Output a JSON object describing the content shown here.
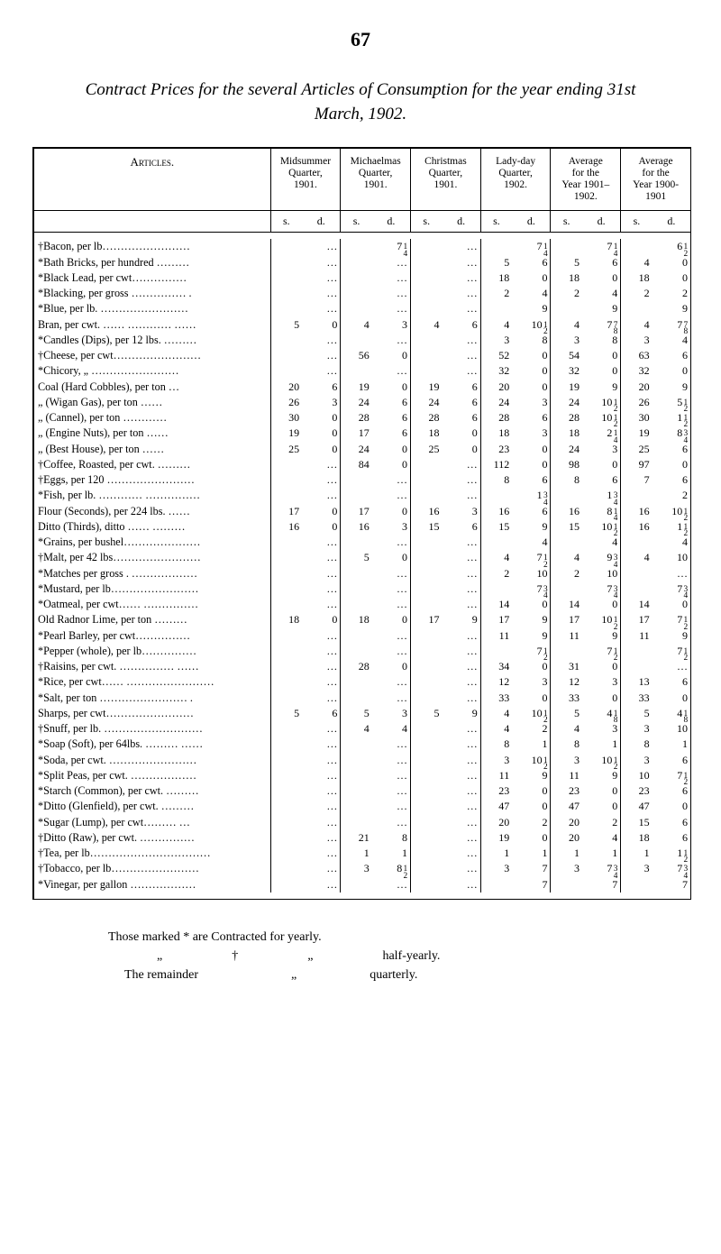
{
  "page_number": "67",
  "title": "Contract Prices for the several Articles of Consumption for the year ending 31st March, 1902.",
  "headers": {
    "articles": "Articles.",
    "cols": [
      "Midsummer\nQuarter,\n1901.",
      "Michaelmas\nQuarter,\n1901.",
      "Christmas\nQuarter,\n1901.",
      "Lady-day\nQuarter,\n1902.",
      "Average\nfor the\nYear 1901–\n1902.",
      "Average\nfor the\nYear 1900-\n1901"
    ],
    "s": "s.",
    "d": "d."
  },
  "rows": [
    {
      "a": "†Bacon, per lb……………………",
      "v": [
        [
          "",
          "…"
        ],
        [
          "",
          "7¼"
        ],
        [
          "",
          "…"
        ],
        [
          "",
          "7¼"
        ],
        [
          "",
          "7¼"
        ],
        [
          "",
          "6½"
        ]
      ]
    },
    {
      "a": "*Bath Bricks, per hundred ………",
      "v": [
        [
          "",
          "…"
        ],
        [
          "",
          "…"
        ],
        [
          "",
          "…"
        ],
        [
          "5",
          "6"
        ],
        [
          "5",
          "6"
        ],
        [
          "4",
          "0"
        ]
      ]
    },
    {
      "a": "*Black Lead, per cwt……………",
      "v": [
        [
          "",
          "…"
        ],
        [
          "",
          "…"
        ],
        [
          "",
          "…"
        ],
        [
          "18",
          "0"
        ],
        [
          "18",
          "0"
        ],
        [
          "18",
          "0"
        ]
      ]
    },
    {
      "a": "*Blacking, per gross …………… .",
      "v": [
        [
          "",
          "…"
        ],
        [
          "",
          "…"
        ],
        [
          "",
          "…"
        ],
        [
          "2",
          "4"
        ],
        [
          "2",
          "4"
        ],
        [
          "2",
          "2"
        ]
      ]
    },
    {
      "a": "*Blue, per lb.  ……………………",
      "v": [
        [
          "",
          "…"
        ],
        [
          "",
          "…"
        ],
        [
          "",
          "…"
        ],
        [
          "",
          "9"
        ],
        [
          "",
          "9"
        ],
        [
          "",
          "9"
        ]
      ]
    },
    {
      "a": "   Bran, per cwt.  …… ………… ……",
      "v": [
        [
          "5",
          "0"
        ],
        [
          "4",
          "3"
        ],
        [
          "4",
          "6"
        ],
        [
          "4",
          "10½"
        ],
        [
          "4",
          "7⅞"
        ],
        [
          "4",
          "7⅞"
        ]
      ]
    },
    {
      "a": "*Candles (Dips), per 12 lbs. ………",
      "v": [
        [
          "",
          "…"
        ],
        [
          "",
          "…"
        ],
        [
          "",
          "…"
        ],
        [
          "3",
          "8"
        ],
        [
          "3",
          "8"
        ],
        [
          "3",
          "4"
        ]
      ]
    },
    {
      "a": "†Cheese, per cwt……………………",
      "v": [
        [
          "",
          "…"
        ],
        [
          "56",
          "0"
        ],
        [
          "",
          "…"
        ],
        [
          "52",
          "0"
        ],
        [
          "54",
          "0"
        ],
        [
          "63",
          "6"
        ]
      ]
    },
    {
      "a": "*Chicory,    „  ……………………",
      "v": [
        [
          "",
          "…"
        ],
        [
          "",
          "…"
        ],
        [
          "",
          "…"
        ],
        [
          "32",
          "0"
        ],
        [
          "32",
          "0"
        ],
        [
          "32",
          "0"
        ]
      ]
    },
    {
      "a": "  Coal (Hard Cobbles), per ton  …",
      "v": [
        [
          "20",
          "6"
        ],
        [
          "19",
          "0"
        ],
        [
          "19",
          "6"
        ],
        [
          "20",
          "0"
        ],
        [
          "19",
          "9"
        ],
        [
          "20",
          "9"
        ]
      ]
    },
    {
      "a": "   „   (Wigan Gas), per ton  ……",
      "v": [
        [
          "26",
          "3"
        ],
        [
          "24",
          "6"
        ],
        [
          "24",
          "6"
        ],
        [
          "24",
          "3"
        ],
        [
          "24",
          "10½"
        ],
        [
          "26",
          "5½"
        ]
      ]
    },
    {
      "a": "   „   (Cannel), per ton  …………",
      "v": [
        [
          "30",
          "0"
        ],
        [
          "28",
          "6"
        ],
        [
          "28",
          "6"
        ],
        [
          "28",
          "6"
        ],
        [
          "28",
          "10½"
        ],
        [
          "30",
          "1½"
        ]
      ]
    },
    {
      "a": "   „   (Engine Nuts), per ton ……",
      "v": [
        [
          "19",
          "0"
        ],
        [
          "17",
          "6"
        ],
        [
          "18",
          "0"
        ],
        [
          "18",
          "3"
        ],
        [
          "18",
          "2¼"
        ],
        [
          "19",
          "8¾"
        ]
      ]
    },
    {
      "a": "   „   (Best House), per ton ……",
      "v": [
        [
          "25",
          "0"
        ],
        [
          "24",
          "0"
        ],
        [
          "25",
          "0"
        ],
        [
          "23",
          "0"
        ],
        [
          "24",
          "3"
        ],
        [
          "25",
          "6"
        ]
      ]
    },
    {
      "a": "†Coffee, Roasted, per cwt.  ………",
      "v": [
        [
          "",
          "…"
        ],
        [
          "84",
          "0"
        ],
        [
          "",
          "…"
        ],
        [
          "112",
          "0"
        ],
        [
          "98",
          "0"
        ],
        [
          "97",
          "0"
        ]
      ]
    },
    {
      "a": "†Eggs, per 120 ……………………",
      "v": [
        [
          "",
          "…"
        ],
        [
          "",
          "…"
        ],
        [
          "",
          "…"
        ],
        [
          "8",
          "6"
        ],
        [
          "8",
          "6"
        ],
        [
          "7",
          "6"
        ]
      ]
    },
    {
      "a": "*Fish, per lb.  ………… ……………",
      "v": [
        [
          "",
          "…"
        ],
        [
          "",
          "…"
        ],
        [
          "",
          "…"
        ],
        [
          "",
          "1¾"
        ],
        [
          "",
          "1¾"
        ],
        [
          "",
          "2"
        ]
      ]
    },
    {
      "a": "  Flour (Seconds), per 224 lbs. ……",
      "v": [
        [
          "17",
          "0"
        ],
        [
          "17",
          "0"
        ],
        [
          "16",
          "3"
        ],
        [
          "16",
          "6"
        ],
        [
          "16",
          "8¼"
        ],
        [
          "16",
          "10½"
        ]
      ]
    },
    {
      "a": "  Ditto (Thirds), ditto …… ………",
      "v": [
        [
          "16",
          "0"
        ],
        [
          "16",
          "3"
        ],
        [
          "15",
          "6"
        ],
        [
          "15",
          "9"
        ],
        [
          "15",
          "10½"
        ],
        [
          "16",
          "1½"
        ]
      ]
    },
    {
      "a": "*Grains, per bushel…………………",
      "v": [
        [
          "",
          "…"
        ],
        [
          "",
          "…"
        ],
        [
          "",
          "…"
        ],
        [
          "",
          "4"
        ],
        [
          "",
          "4"
        ],
        [
          "",
          "4"
        ]
      ]
    },
    {
      "a": "†Malt, per 42 lbs……………………",
      "v": [
        [
          "",
          "…"
        ],
        [
          "5",
          "0"
        ],
        [
          "",
          "…"
        ],
        [
          "4",
          "7½"
        ],
        [
          "4",
          "9¾"
        ],
        [
          "4",
          "10"
        ]
      ]
    },
    {
      "a": "*Matches per gross . ………………",
      "v": [
        [
          "",
          "…"
        ],
        [
          "",
          "…"
        ],
        [
          "",
          "…"
        ],
        [
          "2",
          "10"
        ],
        [
          "2",
          "10"
        ],
        [
          "",
          "…"
        ]
      ]
    },
    {
      "a": "*Mustard, per lb……………………",
      "v": [
        [
          "",
          "…"
        ],
        [
          "",
          "…"
        ],
        [
          "",
          "…"
        ],
        [
          "",
          "7¾"
        ],
        [
          "",
          "7¾"
        ],
        [
          "",
          "7¾"
        ]
      ]
    },
    {
      "a": "*Oatmeal, per cwt……  ……………",
      "v": [
        [
          "",
          "…"
        ],
        [
          "",
          "…"
        ],
        [
          "",
          "…"
        ],
        [
          "14",
          "0"
        ],
        [
          "14",
          "0"
        ],
        [
          "14",
          "0"
        ]
      ]
    },
    {
      "a": "  Old Radnor Lime, per ton ………",
      "v": [
        [
          "18",
          "0"
        ],
        [
          "18",
          "0"
        ],
        [
          "17",
          "9"
        ],
        [
          "17",
          "9"
        ],
        [
          "17",
          "10½"
        ],
        [
          "17",
          "7½"
        ]
      ]
    },
    {
      "a": "*Pearl Barley, per cwt……………",
      "v": [
        [
          "",
          "…"
        ],
        [
          "",
          "…"
        ],
        [
          "",
          "…"
        ],
        [
          "11",
          "9"
        ],
        [
          "11",
          "9"
        ],
        [
          "11",
          "9"
        ]
      ]
    },
    {
      "a": "*Pepper (whole), per lb……………",
      "v": [
        [
          "",
          "…"
        ],
        [
          "",
          "…"
        ],
        [
          "",
          "…"
        ],
        [
          "",
          "7½"
        ],
        [
          "",
          "7½"
        ],
        [
          "",
          "7½"
        ]
      ]
    },
    {
      "a": "†Raisins, per cwt.  …………… ……",
      "v": [
        [
          "",
          "…"
        ],
        [
          "28",
          "0"
        ],
        [
          "",
          "…"
        ],
        [
          "34",
          "0"
        ],
        [
          "31",
          "0"
        ],
        [
          "",
          "…"
        ]
      ]
    },
    {
      "a": "*Rice, per cwt…… ……………………",
      "v": [
        [
          "",
          "…"
        ],
        [
          "",
          "…"
        ],
        [
          "",
          "…"
        ],
        [
          "12",
          "3"
        ],
        [
          "12",
          "3"
        ],
        [
          "13",
          "6"
        ]
      ]
    },
    {
      "a": "*Salt, per ton …………………… .",
      "v": [
        [
          "",
          "…"
        ],
        [
          "",
          "…"
        ],
        [
          "",
          "…"
        ],
        [
          "33",
          "0"
        ],
        [
          "33",
          "0"
        ],
        [
          "33",
          "0"
        ]
      ]
    },
    {
      "a": "   Sharps, per cwt……………………",
      "v": [
        [
          "5",
          "6"
        ],
        [
          "5",
          "3"
        ],
        [
          "5",
          "9"
        ],
        [
          "4",
          "10½"
        ],
        [
          "5",
          "4⅛"
        ],
        [
          "5",
          "4⅛"
        ]
      ]
    },
    {
      "a": "†Snuff, per lb. ………………………",
      "v": [
        [
          "",
          "…"
        ],
        [
          "4",
          "4"
        ],
        [
          "",
          "…"
        ],
        [
          "4",
          "2"
        ],
        [
          "4",
          "3"
        ],
        [
          "3",
          "10"
        ]
      ]
    },
    {
      "a": "*Soap (Soft), per 64lbs. ……… ……",
      "v": [
        [
          "",
          "…"
        ],
        [
          "",
          "…"
        ],
        [
          "",
          "…"
        ],
        [
          "8",
          "1"
        ],
        [
          "8",
          "1"
        ],
        [
          "8",
          "1"
        ]
      ]
    },
    {
      "a": "*Soda, per cwt.  ……………………",
      "v": [
        [
          "",
          "…"
        ],
        [
          "",
          "…"
        ],
        [
          "",
          "…"
        ],
        [
          "3",
          "10½"
        ],
        [
          "3",
          "10½"
        ],
        [
          "3",
          "6"
        ]
      ]
    },
    {
      "a": "*Split Peas, per cwt. ………………",
      "v": [
        [
          "",
          "…"
        ],
        [
          "",
          "…"
        ],
        [
          "",
          "…"
        ],
        [
          "11",
          "9"
        ],
        [
          "11",
          "9"
        ],
        [
          "10",
          "7½"
        ]
      ]
    },
    {
      "a": "*Starch (Common), per cwt. ………",
      "v": [
        [
          "",
          "…"
        ],
        [
          "",
          "…"
        ],
        [
          "",
          "…"
        ],
        [
          "23",
          "0"
        ],
        [
          "23",
          "0"
        ],
        [
          "23",
          "6"
        ]
      ]
    },
    {
      "a": "*Ditto (Glenfield), per cwt. ………",
      "v": [
        [
          "",
          "…"
        ],
        [
          "",
          "…"
        ],
        [
          "",
          "…"
        ],
        [
          "47",
          "0"
        ],
        [
          "47",
          "0"
        ],
        [
          "47",
          "0"
        ]
      ]
    },
    {
      "a": "*Sugar (Lump), per cwt………  …",
      "v": [
        [
          "",
          "…"
        ],
        [
          "",
          "…"
        ],
        [
          "",
          "…"
        ],
        [
          "20",
          "2"
        ],
        [
          "20",
          "2"
        ],
        [
          "15",
          "6"
        ]
      ]
    },
    {
      "a": "†Ditto (Raw), per cwt. ……………",
      "v": [
        [
          "",
          "…"
        ],
        [
          "21",
          "8"
        ],
        [
          "",
          "…"
        ],
        [
          "19",
          "0"
        ],
        [
          "20",
          "4"
        ],
        [
          "18",
          "6"
        ]
      ]
    },
    {
      "a": "†Tea, per lb……………………………",
      "v": [
        [
          "",
          "…"
        ],
        [
          "1",
          "1"
        ],
        [
          "",
          "…"
        ],
        [
          "1",
          "1"
        ],
        [
          "1",
          "1"
        ],
        [
          "1",
          "1½"
        ]
      ]
    },
    {
      "a": "†Tobacco, per lb……………………",
      "v": [
        [
          "",
          "…"
        ],
        [
          "3",
          "8½"
        ],
        [
          "",
          "…"
        ],
        [
          "3",
          "7"
        ],
        [
          "3",
          "7¾"
        ],
        [
          "3",
          "7¾"
        ]
      ]
    },
    {
      "a": "*Vinegar, per gallon ………………",
      "v": [
        [
          "",
          "…"
        ],
        [
          "",
          "…"
        ],
        [
          "",
          "…"
        ],
        [
          "",
          "7"
        ],
        [
          "",
          "7"
        ],
        [
          "",
          "7"
        ]
      ]
    }
  ],
  "footnote": {
    "l1a": "Those marked * are Contracted for yearly.",
    "l2a": "„",
    "l2b": "†",
    "l2c": "„",
    "l2d": "half-yearly.",
    "l3a": "The remainder",
    "l3b": "„",
    "l3c": "quarterly."
  }
}
